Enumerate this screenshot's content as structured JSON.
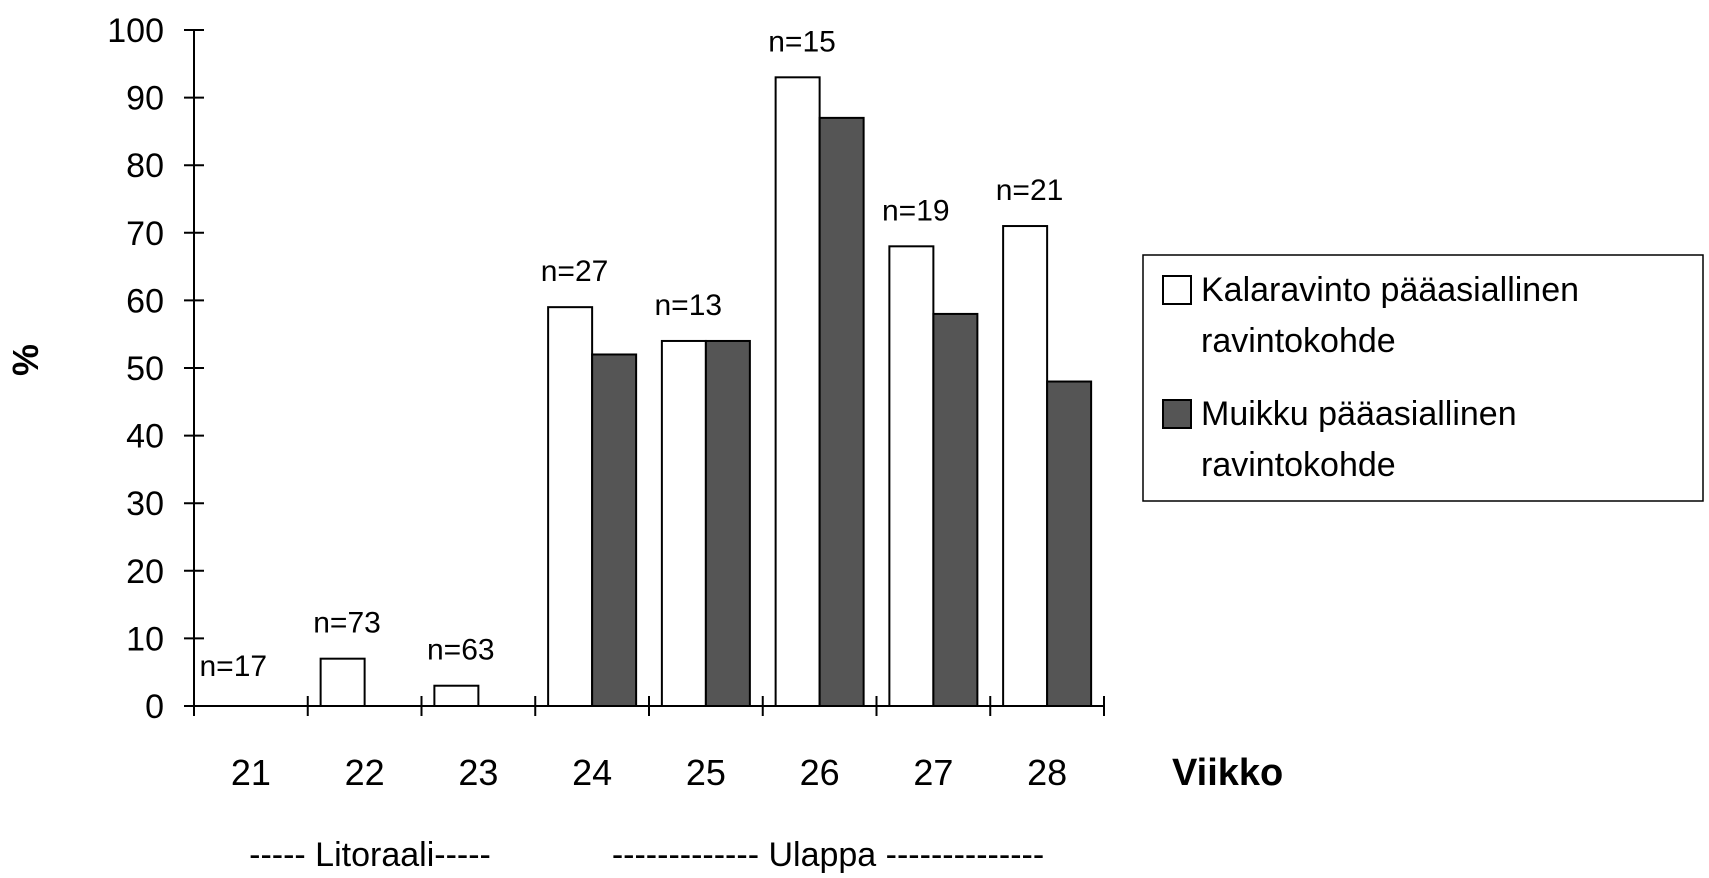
{
  "chart_data": {
    "type": "bar",
    "ylabel": "%",
    "xlabel": "Viikko",
    "ylim": [
      0,
      100
    ],
    "yticks": [
      "0",
      "10",
      "20",
      "30",
      "40",
      "50",
      "60",
      "70",
      "80",
      "90",
      "100"
    ],
    "categories": [
      "21",
      "22",
      "23",
      "24",
      "25",
      "26",
      "27",
      "28"
    ],
    "sample_sizes": [
      "n=17",
      "n=73",
      "n=63",
      "n=27",
      "n=13",
      "n=15",
      "n=19",
      "n=21"
    ],
    "series": [
      {
        "name": "Kalaravinto pääasiallinen ravintokohde",
        "color": "#ffffff",
        "values": [
          0,
          7,
          3,
          59,
          54,
          93,
          68,
          71
        ]
      },
      {
        "name": "Muikku pääasiallinen ravintokohde",
        "color": "#555555",
        "values": [
          0,
          0,
          0,
          52,
          54,
          87,
          58,
          48
        ]
      }
    ],
    "legend": {
      "placement": "right",
      "entries": [
        [
          "Kalaravinto pääasiallinen",
          "ravintokohde"
        ],
        [
          "Muikku pääasiallinen",
          "ravintokohde"
        ]
      ]
    },
    "zones": [
      {
        "label": "----- Litoraali-----",
        "from": "21",
        "to": "23"
      },
      {
        "label": "------------- Ulappa --------------",
        "from": "24",
        "to": "28"
      }
    ],
    "grid": false
  }
}
